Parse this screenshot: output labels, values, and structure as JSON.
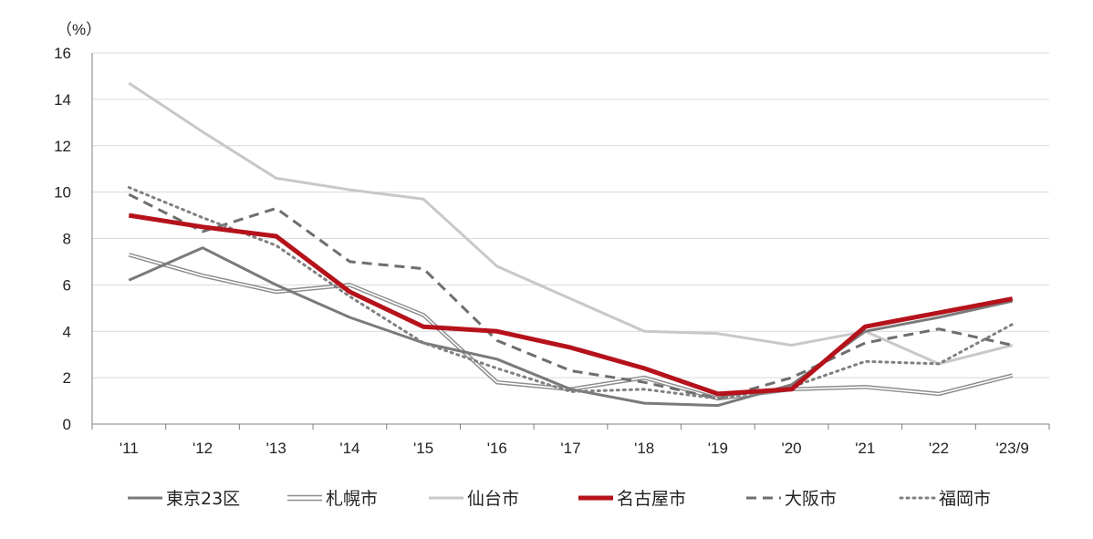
{
  "chart_data": {
    "type": "line",
    "title": "",
    "unit_label": "（%）",
    "xlabel": "",
    "ylabel": "",
    "categories": [
      "'11",
      "'12",
      "'13",
      "'14",
      "'15",
      "'16",
      "'17",
      "'18",
      "'19",
      "'20",
      "'21",
      "'22",
      "'23/9"
    ],
    "yticks": [
      0,
      2,
      4,
      6,
      8,
      10,
      12,
      14,
      16
    ],
    "ylim": [
      0,
      16
    ],
    "grid": true,
    "legend_position": "bottom",
    "series": [
      {
        "name": "東京23区",
        "style": "solid",
        "color": "#7a7a7a",
        "values": [
          6.2,
          7.6,
          6.0,
          4.6,
          3.5,
          2.8,
          1.5,
          0.9,
          0.8,
          1.7,
          4.0,
          4.6,
          5.3
        ]
      },
      {
        "name": "札幌市",
        "style": "double",
        "color": "#8c8c8c",
        "values": [
          7.3,
          6.4,
          5.7,
          6.0,
          4.7,
          1.8,
          1.5,
          2.0,
          1.1,
          1.5,
          1.6,
          1.3,
          2.1
        ]
      },
      {
        "name": "仙台市",
        "style": "solid",
        "color": "#c8c8c8",
        "values": [
          14.7,
          12.6,
          10.6,
          10.1,
          9.7,
          6.8,
          5.4,
          4.0,
          3.9,
          3.4,
          4.0,
          2.6,
          3.4
        ]
      },
      {
        "name": "名古屋市",
        "style": "solid",
        "color": "#b5121b",
        "values": [
          9.0,
          8.5,
          8.1,
          5.7,
          4.2,
          4.0,
          3.3,
          2.4,
          1.3,
          1.5,
          4.2,
          4.8,
          5.4
        ]
      },
      {
        "name": "大阪市",
        "style": "dashed",
        "color": "#6e6e6e",
        "values": [
          9.9,
          8.3,
          9.3,
          7.0,
          6.7,
          3.6,
          2.3,
          1.8,
          1.1,
          2.0,
          3.5,
          4.1,
          3.4
        ]
      },
      {
        "name": "福岡市",
        "style": "dotted",
        "color": "#808080",
        "values": [
          10.2,
          8.9,
          7.7,
          5.5,
          3.5,
          2.4,
          1.4,
          1.5,
          1.1,
          1.6,
          2.7,
          2.6,
          4.3
        ]
      }
    ]
  }
}
